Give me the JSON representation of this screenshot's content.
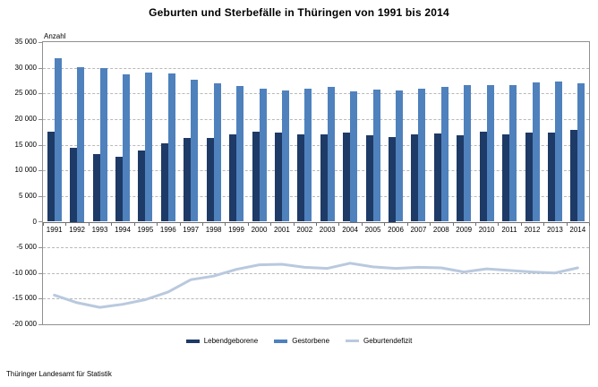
{
  "title": "Geburten und Sterbefälle in Thüringen von 1991 bis 2014",
  "axis": {
    "unit_label": "Anzahl",
    "y_tick_labels": [
      "35 000",
      "30 000",
      "25 000",
      "20 000",
      "15 000",
      "10 000",
      "5 000",
      "0",
      "-5 000",
      "-10 000",
      "-15 000",
      "-20 000"
    ]
  },
  "chart_data": {
    "type": "bar",
    "title": "Geburten und Sterbefälle in Thüringen von 1991 bis 2014",
    "ylabel": "Anzahl",
    "ylim": [
      -20000,
      35000
    ],
    "ytick_step": 5000,
    "grid": true,
    "legend_position": "bottom",
    "categories": [
      "1991",
      "1992",
      "1993",
      "1994",
      "1995",
      "1996",
      "1997",
      "1998",
      "1999",
      "2000",
      "2001",
      "2002",
      "2003",
      "2004",
      "2005",
      "2006",
      "2007",
      "2008",
      "2009",
      "2010",
      "2011",
      "2012",
      "2013",
      "2014"
    ],
    "series": [
      {
        "name": "Lebendgeborene",
        "type": "bar",
        "color": "#1E3A66",
        "values": [
          17500,
          14400,
          13200,
          12700,
          13800,
          15200,
          16400,
          16400,
          17100,
          17600,
          17300,
          17100,
          17100,
          17300,
          16900,
          16500,
          17000,
          17200,
          16900,
          17500,
          17100,
          17300,
          17400,
          17900
        ]
      },
      {
        "name": "Gestorbene",
        "type": "bar",
        "color": "#4F81BD",
        "values": [
          31800,
          30200,
          29900,
          28800,
          29000,
          28900,
          27700,
          27000,
          26400,
          26000,
          25600,
          26000,
          26200,
          25400,
          25700,
          25600,
          25900,
          26200,
          26700,
          26700,
          26600,
          27100,
          27400,
          26900
        ]
      },
      {
        "name": "Geburtendefizit",
        "type": "line",
        "color": "#B9C9DE",
        "values": [
          -14300,
          -15800,
          -16700,
          -16100,
          -15200,
          -13700,
          -11300,
          -10600,
          -9300,
          -8400,
          -8300,
          -8900,
          -9100,
          -8100,
          -8800,
          -9100,
          -8900,
          -9000,
          -9800,
          -9200,
          -9500,
          -9800,
          -10000,
          -9000
        ]
      }
    ]
  },
  "footer": {
    "source": "Thüringer Landesamt für Statistik"
  }
}
